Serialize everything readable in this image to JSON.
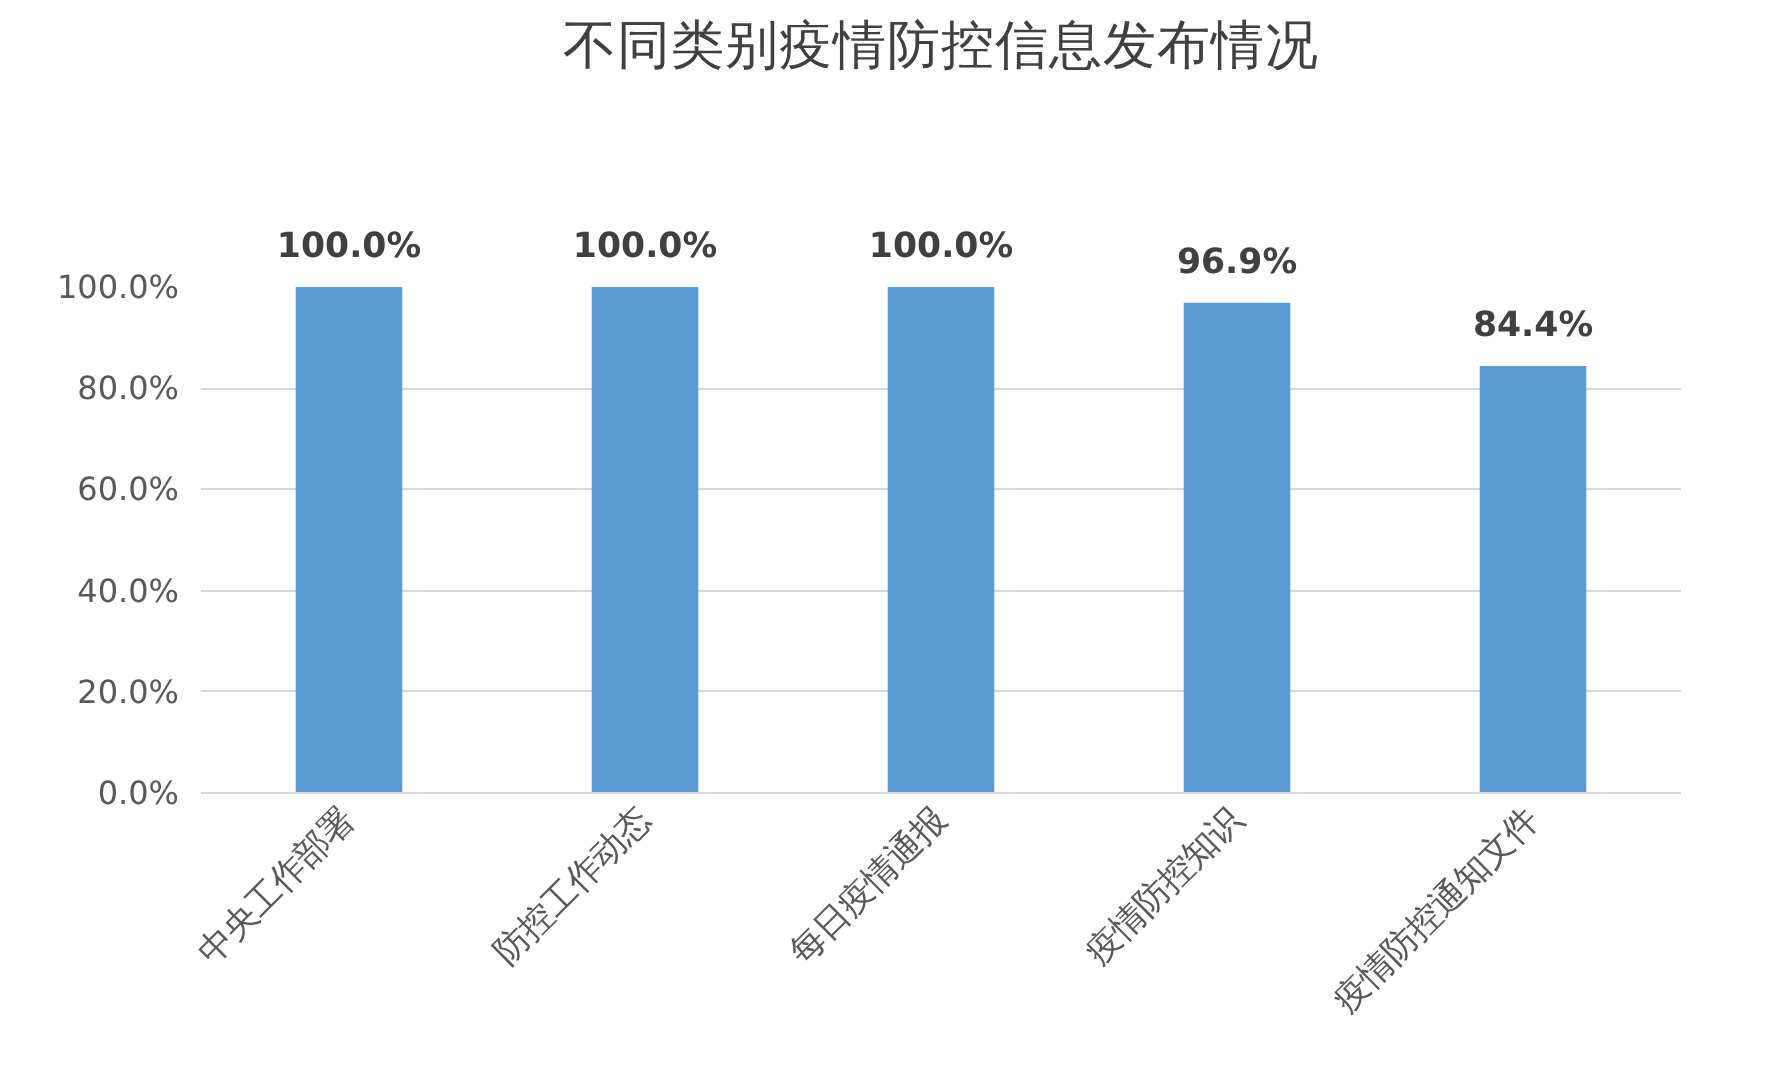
{
  "chart_data": {
    "type": "bar",
    "title": "不同类别疫情防控信息发布情况",
    "categories": [
      "中央工作部署",
      "防控工作动态",
      "每日疫情通报",
      "疫情防控知识",
      "疫情防控通知文件"
    ],
    "values": [
      100.0,
      100.0,
      100.0,
      96.9,
      84.4
    ],
    "value_labels": [
      "100.0%",
      "100.0%",
      "100.0%",
      "96.9%",
      "84.4%"
    ],
    "color": "#5b9bd5",
    "ylim": [
      0,
      100
    ],
    "yticks": [
      {
        "value": 0,
        "label": "0.0%"
      },
      {
        "value": 20,
        "label": "20.0%"
      },
      {
        "value": 40,
        "label": "40.0%"
      },
      {
        "value": 60,
        "label": "60.0%"
      },
      {
        "value": 80,
        "label": "80.0%"
      },
      {
        "value": 100,
        "label": "100.0%"
      }
    ],
    "grid": "y"
  }
}
